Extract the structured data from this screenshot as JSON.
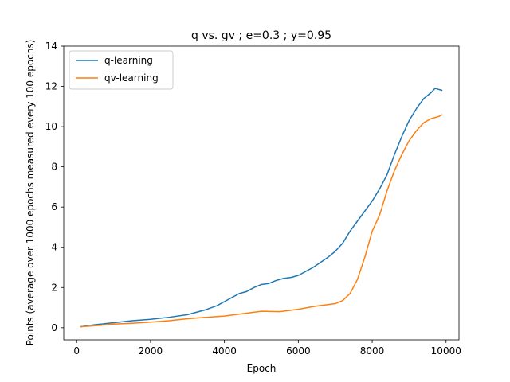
{
  "chart_data": {
    "type": "line",
    "title": "q vs. gv ; e=0.3 ; y=0.95",
    "xlabel": "Epoch",
    "ylabel": "Points (average over 1000 epochs measured every 100 epochs)",
    "xlim": [
      -350,
      10350
    ],
    "ylim": [
      -0.6,
      14
    ],
    "xticks": [
      0,
      2000,
      4000,
      6000,
      8000,
      10000
    ],
    "yticks": [
      0,
      2,
      4,
      6,
      8,
      10,
      12,
      14
    ],
    "grid": false,
    "legend_position": "top-left",
    "series": [
      {
        "name": "q-learning",
        "color": "#1f77b4",
        "x": [
          100,
          500,
          1000,
          1500,
          2000,
          2500,
          3000,
          3500,
          3800,
          4000,
          4200,
          4400,
          4600,
          4800,
          5000,
          5200,
          5400,
          5600,
          5800,
          6000,
          6200,
          6400,
          6600,
          6800,
          7000,
          7200,
          7400,
          7600,
          7800,
          8000,
          8200,
          8400,
          8600,
          8800,
          9000,
          9200,
          9400,
          9600,
          9700,
          9900
        ],
        "y": [
          0.05,
          0.15,
          0.25,
          0.35,
          0.42,
          0.52,
          0.65,
          0.9,
          1.1,
          1.3,
          1.5,
          1.7,
          1.8,
          2.0,
          2.15,
          2.2,
          2.35,
          2.45,
          2.5,
          2.6,
          2.8,
          3.0,
          3.25,
          3.5,
          3.8,
          4.2,
          4.8,
          5.3,
          5.8,
          6.3,
          6.9,
          7.6,
          8.6,
          9.5,
          10.3,
          10.9,
          11.4,
          11.7,
          11.9,
          11.8
        ]
      },
      {
        "name": "qv-learning",
        "color": "#ff7f0e",
        "x": [
          100,
          500,
          1000,
          1500,
          2000,
          2500,
          3000,
          3500,
          4000,
          4500,
          5000,
          5500,
          6000,
          6500,
          6800,
          7000,
          7200,
          7400,
          7600,
          7800,
          8000,
          8200,
          8400,
          8600,
          8800,
          9000,
          9200,
          9400,
          9600,
          9800,
          9900
        ],
        "y": [
          0.05,
          0.1,
          0.18,
          0.22,
          0.28,
          0.35,
          0.45,
          0.52,
          0.58,
          0.7,
          0.82,
          0.8,
          0.92,
          1.08,
          1.15,
          1.2,
          1.35,
          1.7,
          2.4,
          3.5,
          4.8,
          5.6,
          6.8,
          7.8,
          8.6,
          9.3,
          9.8,
          10.2,
          10.4,
          10.5,
          10.6
        ]
      }
    ]
  }
}
